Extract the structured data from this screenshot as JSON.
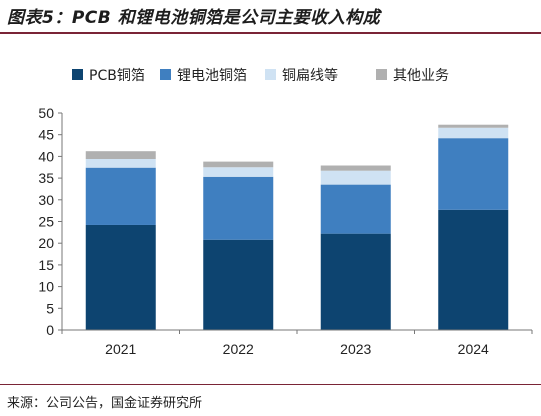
{
  "title": "图表5：PCB 和锂电池铜箔是公司主要收入构成",
  "source": "来源：公司公告，国金证券研究所",
  "chart_data": {
    "type": "bar",
    "stacked": true,
    "categories": [
      "2021",
      "2022",
      "2023",
      "2024"
    ],
    "series": [
      {
        "name": "PCB铜箔",
        "color": "#0d4470",
        "values": [
          24.2,
          20.8,
          22.2,
          27.7
        ]
      },
      {
        "name": "锂电池铜箔",
        "color": "#3f7fc0",
        "values": [
          13.2,
          14.5,
          11.3,
          16.5
        ]
      },
      {
        "name": "铜扁线等",
        "color": "#cfe2f3",
        "values": [
          2.0,
          2.2,
          3.2,
          2.4
        ]
      },
      {
        "name": "其他业务",
        "color": "#b0b0b0",
        "values": [
          1.8,
          1.3,
          1.2,
          0.7
        ]
      }
    ],
    "ylim": [
      0,
      50
    ],
    "yticks": [
      0,
      5,
      10,
      15,
      20,
      25,
      30,
      35,
      40,
      45,
      50
    ],
    "grid": false,
    "legend_position": "top"
  }
}
